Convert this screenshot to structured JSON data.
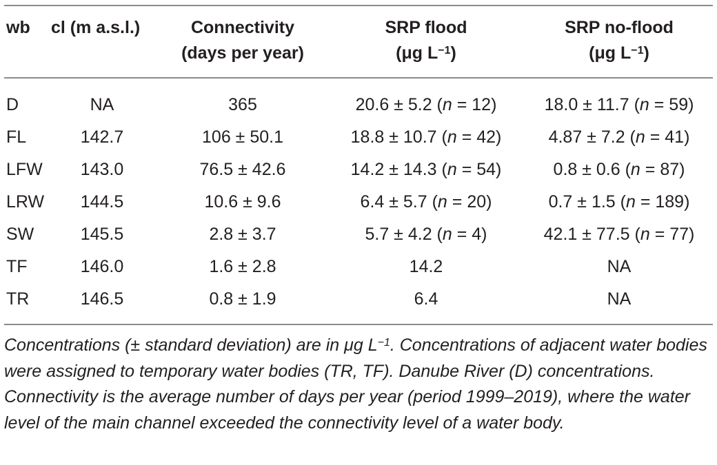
{
  "table": {
    "headers": {
      "wb": "wb",
      "cl": "cl (m a.s.l.)",
      "connectivity_line1": "Connectivity",
      "connectivity_line2": "(days per year)",
      "srp_flood_line1": "SRP flood",
      "srp_flood_unit": "(μg L",
      "srp_flood_exp": "−1",
      "srp_flood_close": ")",
      "srp_noflood_line1": "SRP no-flood",
      "srp_noflood_unit": "(μg L",
      "srp_noflood_exp": "−1",
      "srp_noflood_close": ")"
    },
    "rows": [
      {
        "wb": "D",
        "cl": "NA",
        "connectivity": "365",
        "flood_val": "20.6 ± 5.2 (",
        "flood_n": "n",
        "flood_rest": " = 12)",
        "noflood_val": "18.0 ± 11.7 (",
        "noflood_n": "n",
        "noflood_rest": " = 59)"
      },
      {
        "wb": "FL",
        "cl": "142.7",
        "connectivity": "106 ± 50.1",
        "flood_val": "18.8 ± 10.7 (",
        "flood_n": "n",
        "flood_rest": " = 42)",
        "noflood_val": "4.87 ± 7.2 (",
        "noflood_n": "n",
        "noflood_rest": " = 41)"
      },
      {
        "wb": "LFW",
        "cl": "143.0",
        "connectivity": "76.5 ± 42.6",
        "flood_val": "14.2 ± 14.3 (",
        "flood_n": "n",
        "flood_rest": " = 54)",
        "noflood_val": "0.8 ± 0.6 (",
        "noflood_n": "n",
        "noflood_rest": " = 87)"
      },
      {
        "wb": "LRW",
        "cl": "144.5",
        "connectivity": "10.6 ± 9.6",
        "flood_val": "6.4 ± 5.7 (",
        "flood_n": "n",
        "flood_rest": " = 20)",
        "noflood_val": "0.7 ± 1.5 (",
        "noflood_n": "n",
        "noflood_rest": " = 189)"
      },
      {
        "wb": "SW",
        "cl": "145.5",
        "connectivity": "2.8 ± 3.7",
        "flood_val": "5.7 ± 4.2 (",
        "flood_n": "n",
        "flood_rest": " = 4)",
        "noflood_val": "42.1 ± 77.5 (",
        "noflood_n": "n",
        "noflood_rest": " = 77)"
      },
      {
        "wb": "TF",
        "cl": "146.0",
        "connectivity": "1.6 ± 2.8",
        "flood_val": "14.2",
        "flood_n": "",
        "flood_rest": "",
        "noflood_val": "NA",
        "noflood_n": "",
        "noflood_rest": ""
      },
      {
        "wb": "TR",
        "cl": "146.5",
        "connectivity": "0.8 ± 1.9",
        "flood_val": "6.4",
        "flood_n": "",
        "flood_rest": "",
        "noflood_val": "NA",
        "noflood_n": "",
        "noflood_rest": ""
      }
    ]
  },
  "footnote": {
    "part1": "Concentrations (± standard deviation) are in μg L",
    "exp": "−1",
    "part2": ". Concentrations of adjacent water bodies were assigned to temporary water bodies (TR, TF). Danube River (D) concentrations. Connectivity is the average number of days per year (period 1999–2019), where the water level of the main channel exceeded the connectivity level of a water body."
  }
}
